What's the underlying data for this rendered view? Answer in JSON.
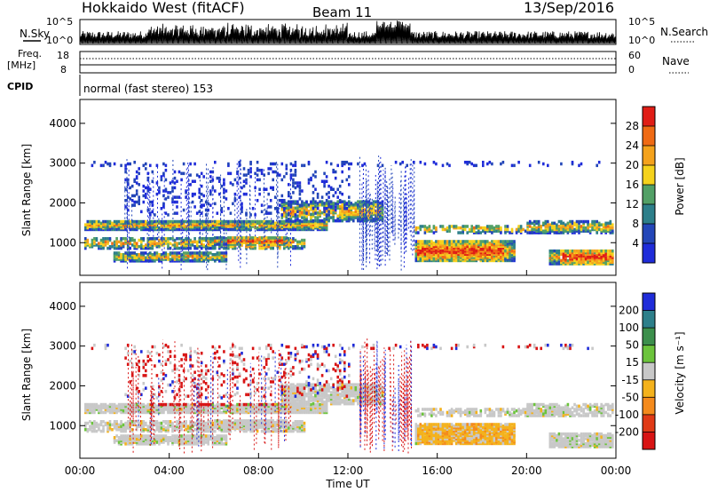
{
  "header": {
    "station": "Hokkaido West (fitACF)",
    "beam": "Beam 11",
    "date": "13/Sep/2016"
  },
  "top_panel": {
    "left_label": "N.Sky",
    "right_label": "N.Search",
    "y_ticks_left": [
      "10^5",
      "10^0"
    ],
    "y_ticks_right": [
      "10^5",
      "10^0"
    ]
  },
  "freq_panel": {
    "left_label_1": "Freq.",
    "left_label_2": "[MHz]",
    "right_label": "Nave",
    "y_ticks_left": [
      "18",
      "8"
    ],
    "y_ticks_right": [
      "60",
      "0"
    ]
  },
  "cpid": {
    "label": "CPID",
    "value": "normal (fast stereo) 153"
  },
  "chart_data": [
    {
      "type": "heatmap",
      "quantity": "Power",
      "ylabel": "Slant Range [km]",
      "xlabel": "",
      "ylim": [
        180,
        4600
      ],
      "y_ticks": [
        "1000",
        "2000",
        "3000",
        "4000"
      ],
      "colorbar": {
        "label": "Power [dB]",
        "ticks": [
          "4",
          "8",
          "12",
          "16",
          "20",
          "24",
          "28"
        ],
        "colors": [
          "#1f2cd9",
          "#2346b8",
          "#2d7f8a",
          "#52a066",
          "#f5d21c",
          "#f4a21c",
          "#ef6a14",
          "#e01d16"
        ]
      }
    },
    {
      "type": "heatmap",
      "quantity": "Velocity",
      "ylabel": "Slant Range [km]",
      "xlabel": "Time UT",
      "ylim": [
        180,
        4600
      ],
      "y_ticks": [
        "1000",
        "2000",
        "3000",
        "4000"
      ],
      "x_ticks": [
        "00:00",
        "04:00",
        "08:00",
        "12:00",
        "16:00",
        "20:00",
        "00:00"
      ],
      "xlim_hours": [
        0,
        24
      ],
      "colorbar": {
        "label": "Velocity [m s⁻¹]",
        "ticks": [
          "200",
          "100",
          "50",
          "15",
          "-15",
          "-50",
          "-100",
          "-200"
        ],
        "colors": [
          "#1f2cd9",
          "#2d7f8a",
          "#3c8f4c",
          "#6cc43c",
          "#c8c8c8",
          "#f4b21c",
          "#f48a1c",
          "#e03a16",
          "#d81414"
        ]
      }
    }
  ]
}
